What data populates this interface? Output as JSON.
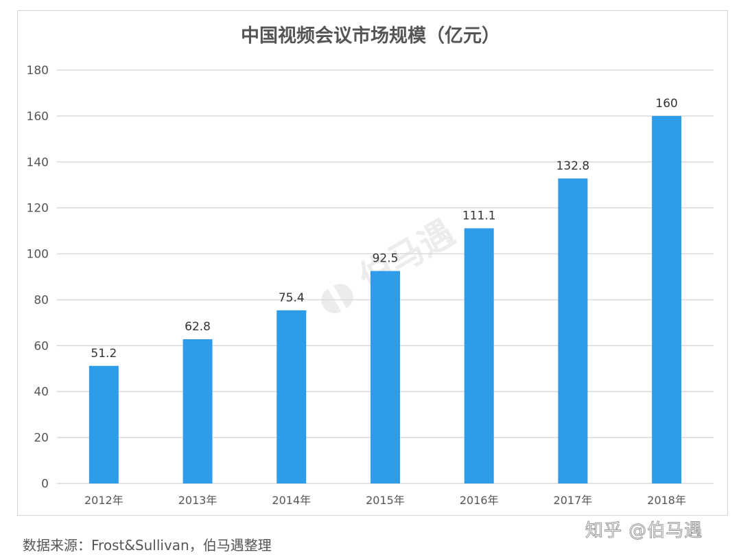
{
  "chart_data": {
    "type": "bar",
    "title": "中国视频会议市场规模（亿元）",
    "categories": [
      "2012年",
      "2013年",
      "2014年",
      "2015年",
      "2016年",
      "2017年",
      "2018年"
    ],
    "values": [
      51.2,
      62.8,
      75.4,
      92.5,
      111.1,
      132.8,
      160
    ],
    "value_labels": [
      "51.2",
      "62.8",
      "75.4",
      "92.5",
      "111.1",
      "132.8",
      "160"
    ],
    "xlabel": "",
    "ylabel": "",
    "ylim": [
      0,
      180
    ],
    "yticks": [
      0,
      20,
      40,
      60,
      80,
      100,
      120,
      140,
      160,
      180
    ],
    "grid": true,
    "bar_color": "#2f9ce9"
  },
  "source": "数据来源：Frost&Sullivan，伯马遇整理",
  "credit": "知乎 @伯马遇",
  "watermark": "伯马遇"
}
